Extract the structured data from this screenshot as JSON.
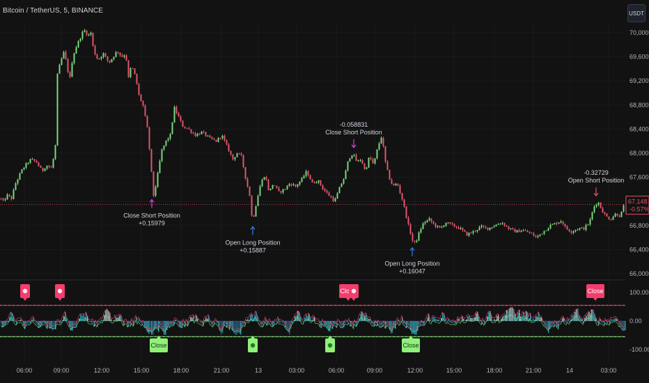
{
  "header": {
    "symbol": "Bitcoin / TetherUS, 5, BINANCE",
    "currency_button": "USDT"
  },
  "colors": {
    "background": "#121212",
    "up": "#7bd87f",
    "down": "#e0566b",
    "grid": "#1b1b1b",
    "price_label": "#e0566b",
    "long_arrow": "#2f7ff0",
    "close_short_arrow": "#d63cf0",
    "short_arrow": "#e0566b",
    "osc_close_red": "#f23d6d",
    "osc_close_green": "#90f07a",
    "osc_cyan": "#29b6d4"
  },
  "chart_data": [
    {
      "type": "candlestick",
      "y_ticks": [
        "70,000.00",
        "69,600.00",
        "69,200.00",
        "68,800.00",
        "68,400.00",
        "68,000.00",
        "67,600.00",
        "67,200.00",
        "66,800.00",
        "66,400.00",
        "66,000.00"
      ],
      "ylim": [
        66000,
        70150
      ],
      "last_price": "67,148.35",
      "last_change": "-0.57%",
      "x_ticks": [
        "06:00",
        "09:00",
        "12:00",
        "15:00",
        "18:00",
        "21:00",
        "13",
        "03:00",
        "06:00",
        "09:00",
        "12:00",
        "15:00",
        "18:00",
        "21:00",
        "14",
        "03:00"
      ],
      "path": [
        [
          0,
          67250
        ],
        [
          4,
          67200
        ],
        [
          10,
          67300
        ],
        [
          16,
          67250
        ],
        [
          22,
          67500
        ],
        [
          30,
          67700
        ],
        [
          36,
          67800
        ],
        [
          44,
          67900
        ],
        [
          52,
          67850
        ],
        [
          60,
          67700
        ],
        [
          66,
          67800
        ],
        [
          74,
          67750
        ],
        [
          80,
          68200
        ],
        [
          82,
          69300
        ],
        [
          86,
          69500
        ],
        [
          92,
          69700
        ],
        [
          96,
          69400
        ],
        [
          100,
          69250
        ],
        [
          104,
          69600
        ],
        [
          110,
          69800
        ],
        [
          114,
          69900
        ],
        [
          120,
          70050
        ],
        [
          126,
          69950
        ],
        [
          130,
          70000
        ],
        [
          134,
          69700
        ],
        [
          140,
          69550
        ],
        [
          148,
          69650
        ],
        [
          156,
          69500
        ],
        [
          162,
          69600
        ],
        [
          168,
          69700
        ],
        [
          174,
          69600
        ],
        [
          180,
          69650
        ],
        [
          184,
          69250
        ],
        [
          188,
          69450
        ],
        [
          192,
          69350
        ],
        [
          196,
          69150
        ],
        [
          200,
          68900
        ],
        [
          204,
          68850
        ],
        [
          208,
          68600
        ],
        [
          212,
          68350
        ],
        [
          216,
          67800
        ],
        [
          220,
          67300
        ],
        [
          224,
          67500
        ],
        [
          228,
          67800
        ],
        [
          232,
          68050
        ],
        [
          238,
          68200
        ],
        [
          244,
          68300
        ],
        [
          250,
          68750
        ],
        [
          256,
          68600
        ],
        [
          262,
          68450
        ],
        [
          270,
          68400
        ],
        [
          280,
          68300
        ],
        [
          290,
          68350
        ],
        [
          300,
          68250
        ],
        [
          310,
          68200
        ],
        [
          318,
          68300
        ],
        [
          326,
          68100
        ],
        [
          334,
          67900
        ],
        [
          340,
          68000
        ],
        [
          346,
          67950
        ],
        [
          352,
          67600
        ],
        [
          358,
          67300
        ],
        [
          362,
          66850
        ],
        [
          368,
          67200
        ],
        [
          374,
          67500
        ],
        [
          380,
          67650
        ],
        [
          386,
          67350
        ],
        [
          392,
          67500
        ],
        [
          400,
          67350
        ],
        [
          408,
          67400
        ],
        [
          416,
          67500
        ],
        [
          424,
          67450
        ],
        [
          432,
          67550
        ],
        [
          440,
          67700
        ],
        [
          448,
          67500
        ],
        [
          456,
          67550
        ],
        [
          464,
          67400
        ],
        [
          472,
          67300
        ],
        [
          480,
          67200
        ],
        [
          488,
          67450
        ],
        [
          494,
          67600
        ],
        [
          500,
          67900
        ],
        [
          506,
          68000
        ],
        [
          512,
          67850
        ],
        [
          518,
          67900
        ],
        [
          524,
          67700
        ],
        [
          530,
          67950
        ],
        [
          536,
          67800
        ],
        [
          542,
          68100
        ],
        [
          548,
          68300
        ],
        [
          552,
          67900
        ],
        [
          558,
          67600
        ],
        [
          564,
          67450
        ],
        [
          570,
          67500
        ],
        [
          578,
          67200
        ],
        [
          586,
          66800
        ],
        [
          592,
          66550
        ],
        [
          596,
          66500
        ],
        [
          602,
          66700
        ],
        [
          608,
          66850
        ],
        [
          616,
          66900
        ],
        [
          624,
          66800
        ],
        [
          632,
          66750
        ],
        [
          640,
          66850
        ],
        [
          650,
          66800
        ],
        [
          660,
          66750
        ],
        [
          670,
          66650
        ],
        [
          680,
          66700
        ],
        [
          690,
          66780
        ],
        [
          700,
          66750
        ],
        [
          710,
          66800
        ],
        [
          720,
          66850
        ],
        [
          730,
          66750
        ],
        [
          740,
          66700
        ],
        [
          750,
          66720
        ],
        [
          760,
          66680
        ],
        [
          770,
          66600
        ],
        [
          780,
          66700
        ],
        [
          790,
          66800
        ],
        [
          800,
          66850
        ],
        [
          806,
          66880
        ],
        [
          812,
          66750
        ],
        [
          820,
          66700
        ],
        [
          830,
          66750
        ],
        [
          838,
          66750
        ],
        [
          846,
          66850
        ],
        [
          852,
          67100
        ],
        [
          858,
          67200
        ],
        [
          864,
          67050
        ],
        [
          870,
          66950
        ],
        [
          876,
          66900
        ],
        [
          884,
          67000
        ],
        [
          890,
          66950
        ],
        [
          896,
          67148
        ]
      ],
      "annotations": [
        {
          "x": 218,
          "price": 67300,
          "dir": "up",
          "color": "close_short",
          "lines": [
            "Close Short Position",
            "+0.15979"
          ],
          "pos": "below"
        },
        {
          "x": 363,
          "price": 66850,
          "dir": "up",
          "color": "long",
          "lines": [
            "Open Long Position",
            "+0.15887"
          ],
          "pos": "below"
        },
        {
          "x": 508,
          "price": 68000,
          "dir": "down",
          "color": "close_short",
          "lines": [
            "-0.058831",
            "Close Short Position"
          ],
          "pos": "above"
        },
        {
          "x": 592,
          "price": 66500,
          "dir": "up",
          "color": "long",
          "lines": [
            "Open Long Position",
            "+0.16047"
          ],
          "pos": "below"
        },
        {
          "x": 856,
          "price": 67200,
          "dir": "down",
          "color": "short",
          "lines": [
            "-0.32729",
            "Open Short Position"
          ],
          "pos": "above"
        }
      ]
    },
    {
      "type": "oscillator",
      "y_ticks": [
        "100.00",
        "0.00",
        "-100.00"
      ],
      "ylim": [
        -100,
        100
      ],
      "upper_band": 55,
      "lower_band": -55,
      "tags": [
        {
          "x": 36,
          "label": "",
          "color": "red",
          "pos": "top"
        },
        {
          "x": 86,
          "label": "",
          "color": "red",
          "pos": "top"
        },
        {
          "x": 228,
          "label": "Close",
          "color": "green",
          "pos": "bottom"
        },
        {
          "x": 363,
          "label": "",
          "color": "green",
          "pos": "bottom"
        },
        {
          "x": 474,
          "label": "",
          "color": "green",
          "pos": "bottom"
        },
        {
          "x": 500,
          "label": "Close",
          "color": "red",
          "pos": "top"
        },
        {
          "x": 508,
          "label": "",
          "color": "red",
          "pos": "top"
        },
        {
          "x": 590,
          "label": "Close",
          "color": "green",
          "pos": "bottom"
        },
        {
          "x": 855,
          "label": "Close",
          "color": "red",
          "pos": "top"
        }
      ]
    }
  ]
}
